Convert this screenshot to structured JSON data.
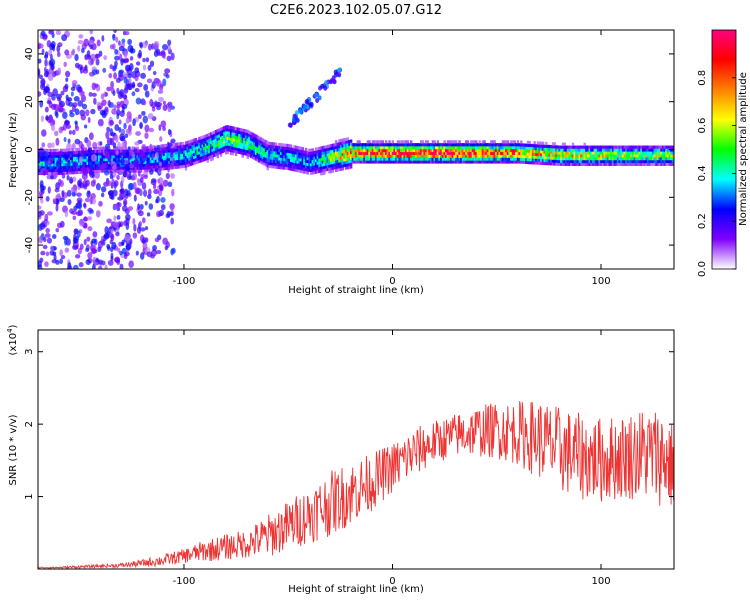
{
  "title": "C2E6.2023.102.05.07.G12",
  "chart_data": [
    {
      "id": "spectrogram",
      "type": "heatmap",
      "title": "",
      "xlabel": "Height of straight line (km)",
      "ylabel": "Frequency (Hz)",
      "xlim": [
        -170,
        135
      ],
      "ylim": [
        -50,
        50
      ],
      "xticks": [
        -100,
        0,
        100
      ],
      "xtick_labels": [
        "-100",
        "0",
        "100"
      ],
      "yticks": [
        -40,
        -20,
        0,
        20,
        40
      ],
      "ytick_labels": [
        "-40",
        "-20",
        "0",
        "20",
        "40"
      ],
      "grid": false,
      "colorbar": {
        "label": "Normalized spectral amplitude",
        "range": [
          0,
          1
        ],
        "ticks": [
          0.0,
          0.2,
          0.4,
          0.6,
          0.8
        ],
        "tick_labels": [
          "0.0",
          "0.2",
          "0.4",
          "0.6",
          "0.8"
        ],
        "colors": [
          "#ffffff",
          "#8000ff",
          "#0000ff",
          "#00ffff",
          "#00ff00",
          "#ffff00",
          "#ff8000",
          "#ff0000",
          "#ff0080"
        ]
      },
      "ridge": {
        "x": [
          -160,
          -140,
          -120,
          -100,
          -90,
          -80,
          -70,
          -60,
          -50,
          -40,
          -30,
          -20,
          -10,
          0,
          20,
          40,
          60,
          80,
          100,
          120,
          135
        ],
        "frequency": [
          -6,
          -5,
          -5,
          -3,
          0,
          4,
          2,
          -3,
          -4,
          -6,
          -4,
          -2,
          -2,
          -2,
          -2,
          -2,
          -2,
          -3,
          -3,
          -3,
          -3
        ],
        "amplitude": [
          0.4,
          0.35,
          0.35,
          0.4,
          0.45,
          0.55,
          0.5,
          0.4,
          0.4,
          0.35,
          0.55,
          0.85,
          0.9,
          0.95,
          0.95,
          0.95,
          0.85,
          0.7,
          0.65,
          0.6,
          0.6
        ]
      }
    },
    {
      "id": "snr",
      "type": "line",
      "title": "",
      "xlabel": "Height of straight line (km)",
      "ylabel": "SNR (10 * v/v)",
      "y_multiplier_label": "(x10",
      "y_multiplier_exponent": "4",
      "xlim": [
        -170,
        135
      ],
      "ylim": [
        0,
        3.3
      ],
      "xticks": [
        -100,
        0,
        100
      ],
      "xtick_labels": [
        "-100",
        "0",
        "100"
      ],
      "yticks": [
        1,
        2,
        3
      ],
      "ytick_labels": [
        "1",
        "2",
        "3"
      ],
      "grid": false,
      "series": [
        {
          "color": "#ee3333",
          "x": [
            -170,
            -160,
            -150,
            -140,
            -130,
            -120,
            -110,
            -100,
            -90,
            -80,
            -70,
            -60,
            -50,
            -40,
            -30,
            -20,
            -10,
            0,
            10,
            20,
            30,
            40,
            50,
            60,
            70,
            80,
            90,
            100,
            110,
            120,
            130,
            135
          ],
          "values": [
            0.02,
            0.02,
            0.03,
            0.04,
            0.05,
            0.08,
            0.12,
            0.18,
            0.25,
            0.3,
            0.35,
            0.45,
            0.6,
            0.75,
            0.9,
            1.05,
            1.2,
            1.4,
            1.6,
            1.75,
            1.85,
            1.9,
            1.92,
            1.88,
            1.8,
            1.65,
            1.55,
            1.5,
            1.55,
            1.6,
            1.55,
            1.4
          ],
          "noise": [
            0.01,
            0.01,
            0.02,
            0.02,
            0.03,
            0.05,
            0.08,
            0.1,
            0.15,
            0.18,
            0.2,
            0.3,
            0.35,
            0.4,
            0.45,
            0.45,
            0.4,
            0.35,
            0.35,
            0.3,
            0.3,
            0.35,
            0.4,
            0.45,
            0.55,
            0.6,
            0.6,
            0.6,
            0.6,
            0.65,
            0.7,
            0.6
          ],
          "max_value": 3.3
        }
      ]
    }
  ]
}
